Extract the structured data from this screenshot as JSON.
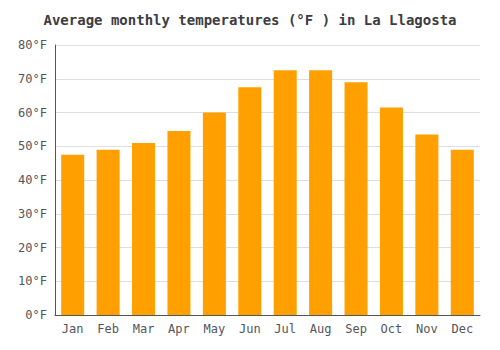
{
  "chart_data": {
    "type": "bar",
    "title": "Average monthly temperatures (°F ) in La Llagosta",
    "categories": [
      "Jan",
      "Feb",
      "Mar",
      "Apr",
      "May",
      "Jun",
      "Jul",
      "Aug",
      "Sep",
      "Oct",
      "Nov",
      "Dec"
    ],
    "values": [
      47.5,
      49.0,
      51.0,
      54.5,
      60.0,
      67.5,
      72.5,
      72.5,
      69.0,
      61.5,
      53.5,
      49.0
    ],
    "color": "#FFA000",
    "ylim": [
      0,
      80
    ],
    "yticks": [
      {
        "value": 0,
        "label": "0°F"
      },
      {
        "value": 10,
        "label": "10°F"
      },
      {
        "value": 20,
        "label": "20°F"
      },
      {
        "value": 30,
        "label": "30°F"
      },
      {
        "value": 40,
        "label": "40°F"
      },
      {
        "value": 50,
        "label": "50°F"
      },
      {
        "value": 60,
        "label": "60°F"
      },
      {
        "value": 70,
        "label": "70°F"
      },
      {
        "value": 80,
        "label": "80°F"
      }
    ],
    "grid": true
  }
}
